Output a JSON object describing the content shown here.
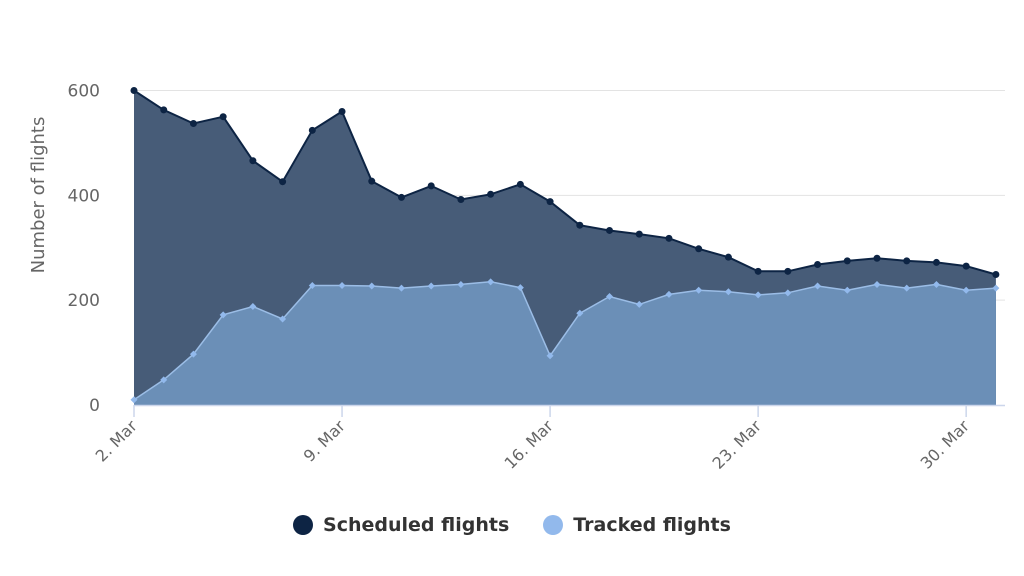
{
  "chart_data": {
    "type": "area",
    "title": "",
    "xlabel": "",
    "ylabel": "Number of flights",
    "ylim": [
      0,
      600
    ],
    "yticks": [
      0,
      200,
      400,
      600
    ],
    "xtick_labels": [
      "2. Mar",
      "9. Mar",
      "16. Mar",
      "23. Mar",
      "30. Mar"
    ],
    "grid": true,
    "legend_position": "bottom",
    "x": [
      "2. Mar",
      "3. Mar",
      "4. Mar",
      "5. Mar",
      "6. Mar",
      "7. Mar",
      "8. Mar",
      "9. Mar",
      "10. Mar",
      "11. Mar",
      "12. Mar",
      "13. Mar",
      "14. Mar",
      "15. Mar",
      "16. Mar",
      "17. Mar",
      "18. Mar",
      "19. Mar",
      "20. Mar",
      "21. Mar",
      "22. Mar",
      "23. Mar",
      "24. Mar",
      "25. Mar",
      "26. Mar",
      "27. Mar",
      "28. Mar",
      "29. Mar",
      "30. Mar",
      "31. Mar"
    ],
    "series": [
      {
        "name": "Scheduled flights",
        "color": "#0d2444",
        "fill": "#475c78",
        "values": [
          600,
          563,
          537,
          550,
          466,
          426,
          524,
          560,
          427,
          396,
          418,
          392,
          402,
          421,
          388,
          343,
          333,
          326,
          318,
          298,
          282,
          255,
          255,
          268,
          275,
          280,
          275,
          272,
          265,
          249
        ]
      },
      {
        "name": "Tracked flights",
        "color": "#92b9ec",
        "fill": "#6b8fb7",
        "values": [
          10,
          48,
          97,
          172,
          188,
          164,
          228,
          228,
          227,
          223,
          227,
          230,
          235,
          224,
          94,
          175,
          207,
          192,
          211,
          219,
          216,
          210,
          214,
          227,
          219,
          230,
          223,
          230,
          219,
          223
        ]
      }
    ]
  },
  "legend": {
    "items": [
      {
        "label": "Scheduled flights",
        "color": "#0d2444"
      },
      {
        "label": "Tracked flights",
        "color": "#92b9ec"
      }
    ]
  }
}
